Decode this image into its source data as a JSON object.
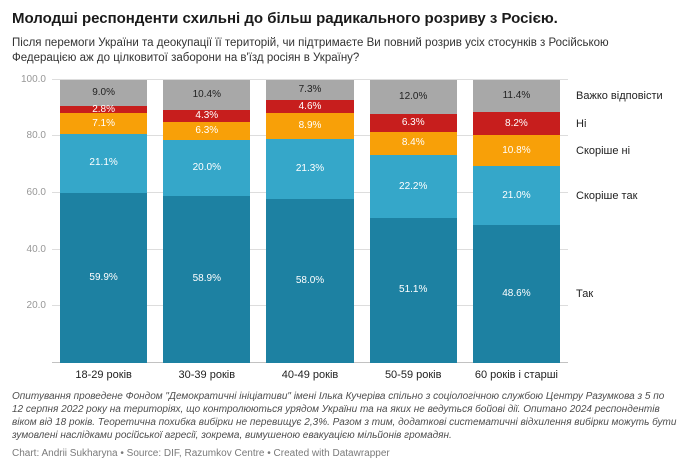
{
  "header": {
    "title": "Молодші респонденти схильні до більш радикального розриву з Росією.",
    "subtitle": "Після перемоги України та деокупації її територій, чи підтримаєте Ви повний розрив усіх стосунків з Російською Федерацією аж до цілковитої заборони на в'їзд росіян в Україну?"
  },
  "chart_data": {
    "type": "bar",
    "stacked": true,
    "title": "Молодші респонденти схильні до більш радикального розриву з Росією.",
    "categories": [
      "18-29 років",
      "30-39 років",
      "40-49 років",
      "50-59 років",
      "60 років і старші"
    ],
    "series": [
      {
        "name": "Так",
        "color": "#1d81a2",
        "label_color": "#ffffff",
        "values": [
          59.9,
          58.9,
          58.0,
          51.1,
          48.6
        ]
      },
      {
        "name": "Скоріше так",
        "color": "#35a7c9",
        "label_color": "#ffffff",
        "values": [
          21.1,
          20.0,
          21.3,
          22.2,
          21.0
        ]
      },
      {
        "name": "Скоріше ні",
        "color": "#f8a008",
        "label_color": "#ffffff",
        "values": [
          7.1,
          6.3,
          8.9,
          8.4,
          10.8
        ]
      },
      {
        "name": "Ні",
        "color": "#c71e1d",
        "label_color": "#ffffff",
        "values": [
          2.8,
          4.3,
          4.6,
          6.3,
          8.2
        ]
      },
      {
        "name": "Важко відповісти",
        "color": "#a8a8a8",
        "label_color": "#222222",
        "values": [
          9.0,
          10.4,
          7.3,
          12.0,
          11.4
        ]
      }
    ],
    "ylim": [
      0,
      100
    ],
    "y_ticks": [
      20,
      40,
      60,
      80,
      100
    ],
    "y_tick_labels": [
      "20.0",
      "40.0",
      "60.0",
      "80.0",
      "100.0"
    ],
    "grid": true,
    "legend_position": "right",
    "value_suffix": "%"
  },
  "footer": {
    "notes": "Опитування проведене Фондом \"Демократичні ініціативи\" імені Ілька Кучеріва спільно з соціологічною службою Центру Разумкова з 5 по 12 серпня 2022 року на територіях, що контролюються урядом України та на яких не ведуться бойові дії. Опитано 2024 респондентів віком від 18 років. Теоретична похибка вибірки не перевищує 2,3%. Разом з тим, додаткові систематичні відхилення вибірки можуть бути зумовлені наслідками російської агресії, зокрема, вимушеною евакуацією мільйонів громадян.",
    "credit": "Chart: Andrii Sukharyna • Source: DIF, Razumkov Centre • Created with Datawrapper"
  }
}
